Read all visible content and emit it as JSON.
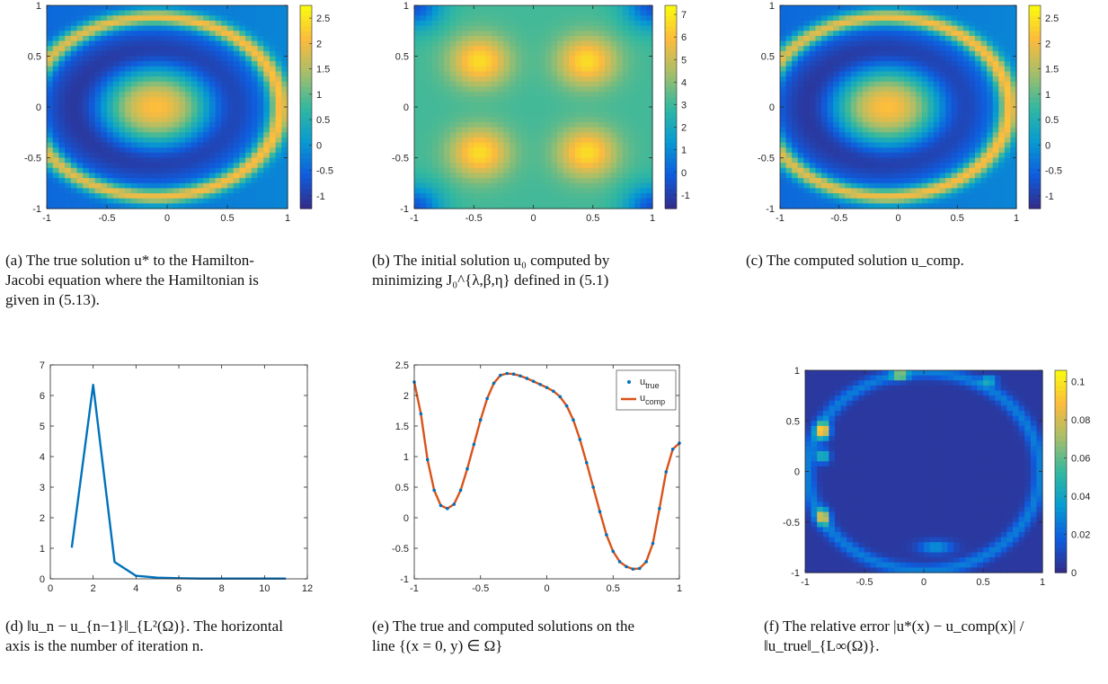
{
  "captions": {
    "a": {
      "label": "(a)",
      "text": "The true solution u* to the Hamilton-Jacobi equation where the Hamiltonian is given in (5.13)."
    },
    "b": {
      "label": "(b)",
      "text": "The initial solution u₀ computed by minimizing J₀^{λ,β,η} defined in (5.1)"
    },
    "c": {
      "label": "(c)",
      "text": "The computed solution u_comp."
    },
    "d": {
      "label": "(d)",
      "text": "‖u_n − u_{n−1}‖_{L²(Ω)}. The horizontal axis is the number of iteration n."
    },
    "e": {
      "label": "(e)",
      "text": "The true and computed solutions on the line {(x = 0, y) ∈ Ω}"
    },
    "f": {
      "label": "(f)",
      "text": "The relative error |u*(x) − u_comp(x)| / ‖u_true‖_{L∞(Ω)}."
    }
  },
  "chart_data": [
    {
      "id": "a",
      "type": "heatmap",
      "colormap": "parula",
      "xlim": [
        -1,
        1
      ],
      "ylim": [
        -1,
        1
      ],
      "xticks": [
        "-1",
        "-0.5",
        "0",
        "0.5",
        "1"
      ],
      "yticks": [
        "-1",
        "-0.5",
        "0",
        "0.5",
        "1"
      ],
      "colorbar_ticks": [
        "-1",
        "-0.5",
        "0",
        "0.5",
        "1",
        "1.5",
        "2",
        "2.5"
      ],
      "clim": [
        -1.25,
        2.75
      ]
    },
    {
      "id": "b",
      "type": "heatmap",
      "colormap": "parula",
      "xlim": [
        -1,
        1
      ],
      "ylim": [
        -1,
        1
      ],
      "xticks": [
        "-1",
        "-0.5",
        "0",
        "0.5",
        "1"
      ],
      "yticks": [
        "-1",
        "-0.5",
        "0",
        "0.5",
        "1"
      ],
      "colorbar_ticks": [
        "-1",
        "0",
        "1",
        "2",
        "3",
        "4",
        "5",
        "6",
        "7"
      ],
      "clim": [
        -1.6,
        7.4
      ]
    },
    {
      "id": "c",
      "type": "heatmap",
      "colormap": "parula",
      "xlim": [
        -1,
        1
      ],
      "ylim": [
        -1,
        1
      ],
      "xticks": [
        "-1",
        "-0.5",
        "0",
        "0.5",
        "1"
      ],
      "yticks": [
        "-1",
        "-0.5",
        "0",
        "0.5",
        "1"
      ],
      "colorbar_ticks": [
        "-1",
        "-0.5",
        "0",
        "0.5",
        "1",
        "1.5",
        "2",
        "2.5"
      ],
      "clim": [
        -1.25,
        2.75
      ]
    },
    {
      "id": "d",
      "type": "line",
      "color": "#0072BD",
      "xlim": [
        0,
        12
      ],
      "ylim": [
        0,
        7
      ],
      "xticks": [
        "0",
        "2",
        "4",
        "6",
        "8",
        "10",
        "12"
      ],
      "yticks": [
        "0",
        "1",
        "2",
        "3",
        "4",
        "5",
        "6",
        "7"
      ],
      "x": [
        1,
        2,
        3,
        4,
        5,
        6,
        7,
        8,
        9,
        10,
        11
      ],
      "y": [
        1.02,
        6.35,
        0.55,
        0.1,
        0.04,
        0.02,
        0.01,
        0.01,
        0.01,
        0.01,
        0.01
      ]
    },
    {
      "id": "e",
      "type": "line",
      "xlim": [
        -1,
        1
      ],
      "ylim": [
        -1,
        2.5
      ],
      "xticks": [
        "-1",
        "-0.5",
        "0",
        "0.5",
        "1"
      ],
      "yticks": [
        "-1",
        "-0.5",
        "0",
        "0.5",
        "1",
        "1.5",
        "2",
        "2.5"
      ],
      "legend": {
        "position": "top-right",
        "items": [
          {
            "name": "u",
            "sub": "true",
            "style": "dots",
            "color": "#0072BD"
          },
          {
            "name": "u",
            "sub": "comp",
            "style": "line",
            "color": "#D95319"
          }
        ]
      },
      "x": [
        -1,
        -0.95,
        -0.9,
        -0.85,
        -0.8,
        -0.75,
        -0.7,
        -0.65,
        -0.6,
        -0.55,
        -0.5,
        -0.45,
        -0.4,
        -0.35,
        -0.3,
        -0.25,
        -0.2,
        -0.15,
        -0.1,
        -0.05,
        0,
        0.05,
        0.1,
        0.15,
        0.2,
        0.25,
        0.3,
        0.35,
        0.4,
        0.45,
        0.5,
        0.55,
        0.6,
        0.65,
        0.7,
        0.75,
        0.8,
        0.85,
        0.9,
        0.95,
        1
      ],
      "y": [
        2.22,
        1.7,
        0.95,
        0.45,
        0.2,
        0.15,
        0.22,
        0.45,
        0.8,
        1.2,
        1.6,
        1.95,
        2.2,
        2.33,
        2.36,
        2.35,
        2.32,
        2.28,
        2.23,
        2.18,
        2.13,
        2.07,
        1.98,
        1.83,
        1.6,
        1.28,
        0.9,
        0.5,
        0.1,
        -0.28,
        -0.55,
        -0.72,
        -0.8,
        -0.84,
        -0.83,
        -0.72,
        -0.42,
        0.15,
        0.75,
        1.12,
        1.22
      ]
    },
    {
      "id": "f",
      "type": "heatmap",
      "colormap": "parula",
      "xlim": [
        -1,
        1
      ],
      "ylim": [
        -1,
        1
      ],
      "xticks": [
        "-1",
        "-0.5",
        "0",
        "0.5",
        "1"
      ],
      "yticks": [
        "-1",
        "-0.5",
        "0",
        "0.5",
        "1"
      ],
      "colorbar_ticks": [
        "0",
        "0.02",
        "0.04",
        "0.06",
        "0.08",
        "0.1"
      ],
      "clim": [
        0,
        0.106
      ]
    }
  ]
}
